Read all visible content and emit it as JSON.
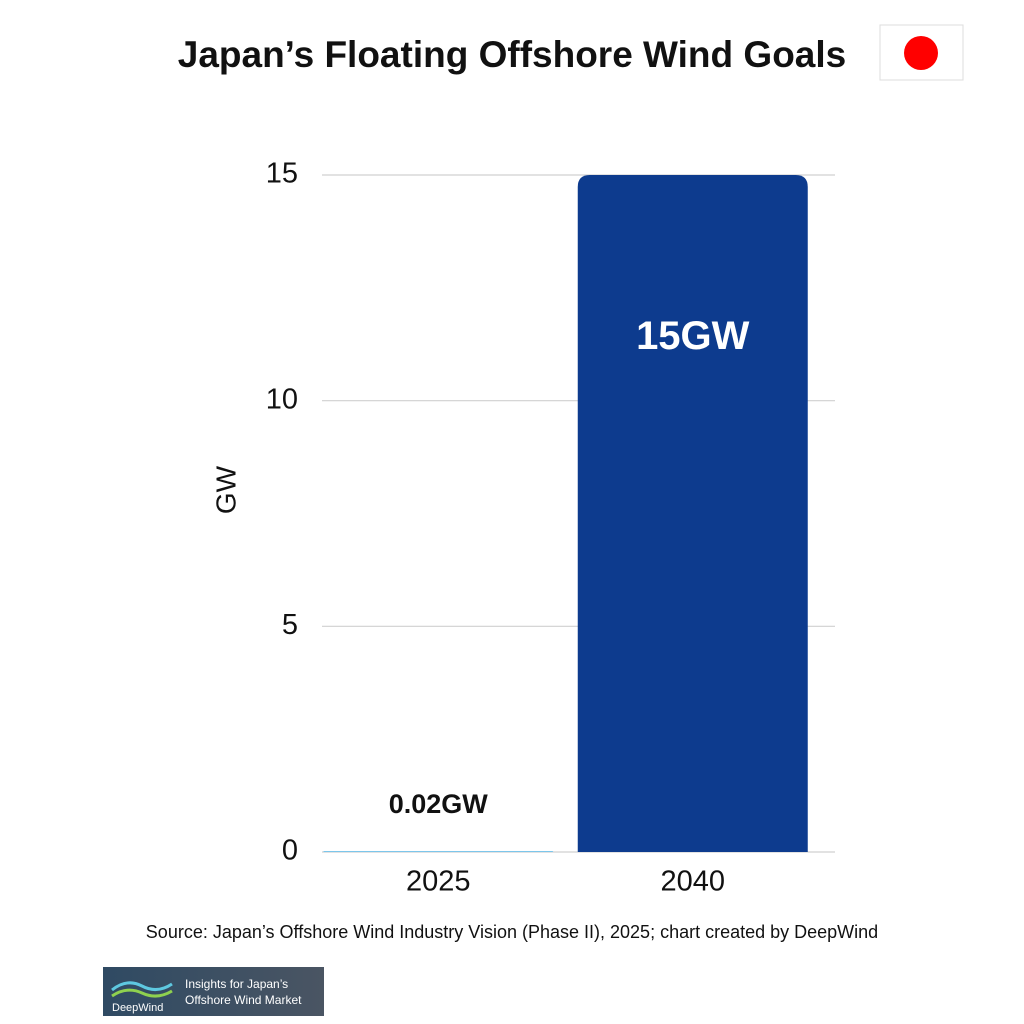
{
  "chart_data": {
    "type": "bar",
    "title": "Japan’s Floating Offshore Wind Goals",
    "ylabel": "GW",
    "categories": [
      "2025",
      "2040"
    ],
    "values": [
      0.02,
      15
    ],
    "value_labels": [
      "0.02GW",
      "15GW"
    ],
    "colors": [
      "#6cc0ea",
      "#0d3b8e"
    ],
    "ylim": [
      0,
      15
    ],
    "yticks": [
      0,
      5,
      10,
      15
    ],
    "grid": true,
    "source": "Source: Japan’s Offshore Wind Industry Vision (Phase II), 2025; chart created by DeepWind",
    "logo": {
      "line1": "Insights for Japan’s",
      "line2": "Offshore Wind Market",
      "brand": "DeepWind"
    }
  }
}
